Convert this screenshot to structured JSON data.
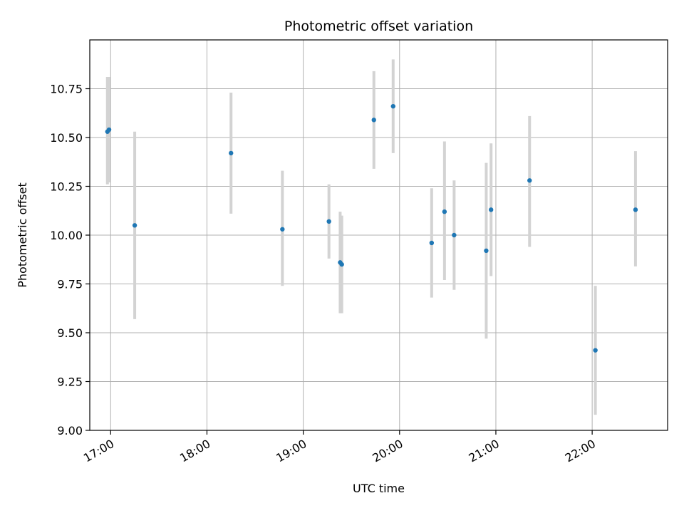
{
  "chart_data": {
    "type": "scatter",
    "title": "Photometric offset variation",
    "xlabel": "UTC time",
    "ylabel": "Photometric offset",
    "x_axis_kind": "time of day (UTC, HH:MM)",
    "xlim": [
      "16:47",
      "22:47"
    ],
    "ylim": [
      9.0,
      11.0
    ],
    "x_ticks": [
      "17:00",
      "18:00",
      "19:00",
      "20:00",
      "21:00",
      "22:00"
    ],
    "y_ticks": [
      "9.00",
      "9.25",
      "9.50",
      "9.75",
      "10.00",
      "10.25",
      "10.50",
      "10.75"
    ],
    "grid": true,
    "legend": "none",
    "colors": {
      "point": "#1f77b4",
      "errorbar": "#d3d3d3",
      "grid": "#b0b0b0"
    },
    "points": [
      {
        "x": "16:58",
        "y": 10.53,
        "err_low": 10.26,
        "err_high": 10.81
      },
      {
        "x": "16:59",
        "y": 10.54,
        "err_low": 10.27,
        "err_high": 10.81
      },
      {
        "x": "17:15",
        "y": 10.05,
        "err_low": 9.57,
        "err_high": 10.53
      },
      {
        "x": "18:15",
        "y": 10.42,
        "err_low": 10.11,
        "err_high": 10.73
      },
      {
        "x": "18:47",
        "y": 10.03,
        "err_low": 9.74,
        "err_high": 10.33
      },
      {
        "x": "19:16",
        "y": 10.07,
        "err_low": 9.88,
        "err_high": 10.26
      },
      {
        "x": "19:23",
        "y": 9.86,
        "err_low": 9.6,
        "err_high": 10.12
      },
      {
        "x": "19:24",
        "y": 9.85,
        "err_low": 9.6,
        "err_high": 10.1
      },
      {
        "x": "19:44",
        "y": 10.59,
        "err_low": 10.34,
        "err_high": 10.84
      },
      {
        "x": "19:56",
        "y": 10.66,
        "err_low": 10.42,
        "err_high": 10.9
      },
      {
        "x": "20:20",
        "y": 9.96,
        "err_low": 9.68,
        "err_high": 10.24
      },
      {
        "x": "20:28",
        "y": 10.12,
        "err_low": 9.77,
        "err_high": 10.48
      },
      {
        "x": "20:34",
        "y": 10.0,
        "err_low": 9.72,
        "err_high": 10.28
      },
      {
        "x": "20:54",
        "y": 9.92,
        "err_low": 9.47,
        "err_high": 10.37
      },
      {
        "x": "20:57",
        "y": 10.13,
        "err_low": 9.79,
        "err_high": 10.47
      },
      {
        "x": "21:21",
        "y": 10.28,
        "err_low": 9.94,
        "err_high": 10.61
      },
      {
        "x": "22:02",
        "y": 9.41,
        "err_low": 9.08,
        "err_high": 9.74
      },
      {
        "x": "22:27",
        "y": 10.13,
        "err_low": 9.84,
        "err_high": 10.43
      }
    ]
  }
}
